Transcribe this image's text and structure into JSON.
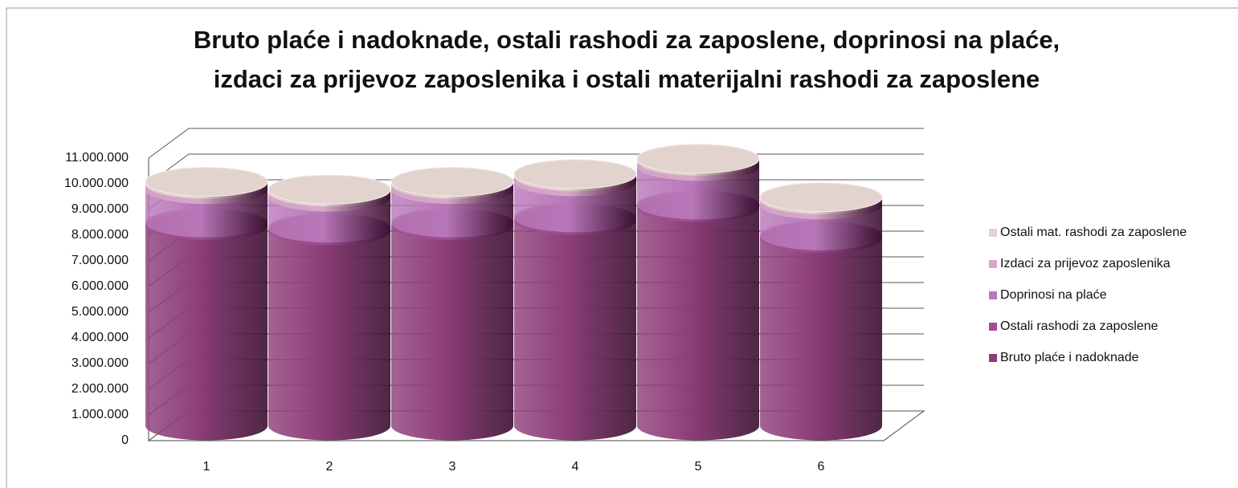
{
  "chart_data": {
    "type": "bar3d_cylinder_stacked",
    "title": [
      "Bruto plaće i nadoknade, ostali rashodi za zaposlene, doprinosi na plaće,",
      "izdaci za prijevoz zaposlenika i ostali materijalni rashodi za zaposlene"
    ],
    "categories": [
      "1",
      "2",
      "3",
      "4",
      "5",
      "6"
    ],
    "series": [
      {
        "name": "Bruto plaće i nadoknade",
        "color": "#8c3d78",
        "values": [
          7800000,
          7600000,
          7800000,
          8000000,
          8500000,
          7300000
        ]
      },
      {
        "name": "Ostali rashodi za zaposlene",
        "color": "#9e4f92",
        "values": [
          100000,
          100000,
          100000,
          100000,
          100000,
          100000
        ]
      },
      {
        "name": "Doprinosi na plaće",
        "color": "#b877b8",
        "values": [
          1300000,
          1200000,
          1300000,
          1400000,
          1500000,
          1200000
        ]
      },
      {
        "name": "Izdaci za prijevoz zaposlenika",
        "color": "#d6a8c8",
        "values": [
          200000,
          200000,
          200000,
          200000,
          200000,
          200000
        ]
      },
      {
        "name": "Ostali mat. rashodi za zaposlene",
        "color": "#e3d3cf",
        "values": [
          100000,
          100000,
          100000,
          100000,
          100000,
          100000
        ]
      }
    ],
    "ylim": [
      0,
      11000000
    ],
    "yticks": [
      0,
      {
        "value": 1000000,
        "label": "1.000.000"
      },
      {
        "value": 2000000,
        "label": "2.000.000"
      },
      {
        "value": 3000000,
        "label": "3.000.000"
      },
      {
        "value": 4000000,
        "label": "4.000.000"
      },
      {
        "value": 5000000,
        "label": "5.000.000"
      },
      {
        "value": 6000000,
        "label": "6.000.000"
      },
      {
        "value": 7000000,
        "label": "7.000.000"
      },
      {
        "value": 8000000,
        "label": "8.000.000"
      },
      {
        "value": 9000000,
        "label": "9.000.000"
      },
      {
        "value": 10000000,
        "label": "10.000.000"
      },
      {
        "value": 11000000,
        "label": "11.000.000"
      }
    ],
    "grid": true,
    "legend": "right"
  }
}
